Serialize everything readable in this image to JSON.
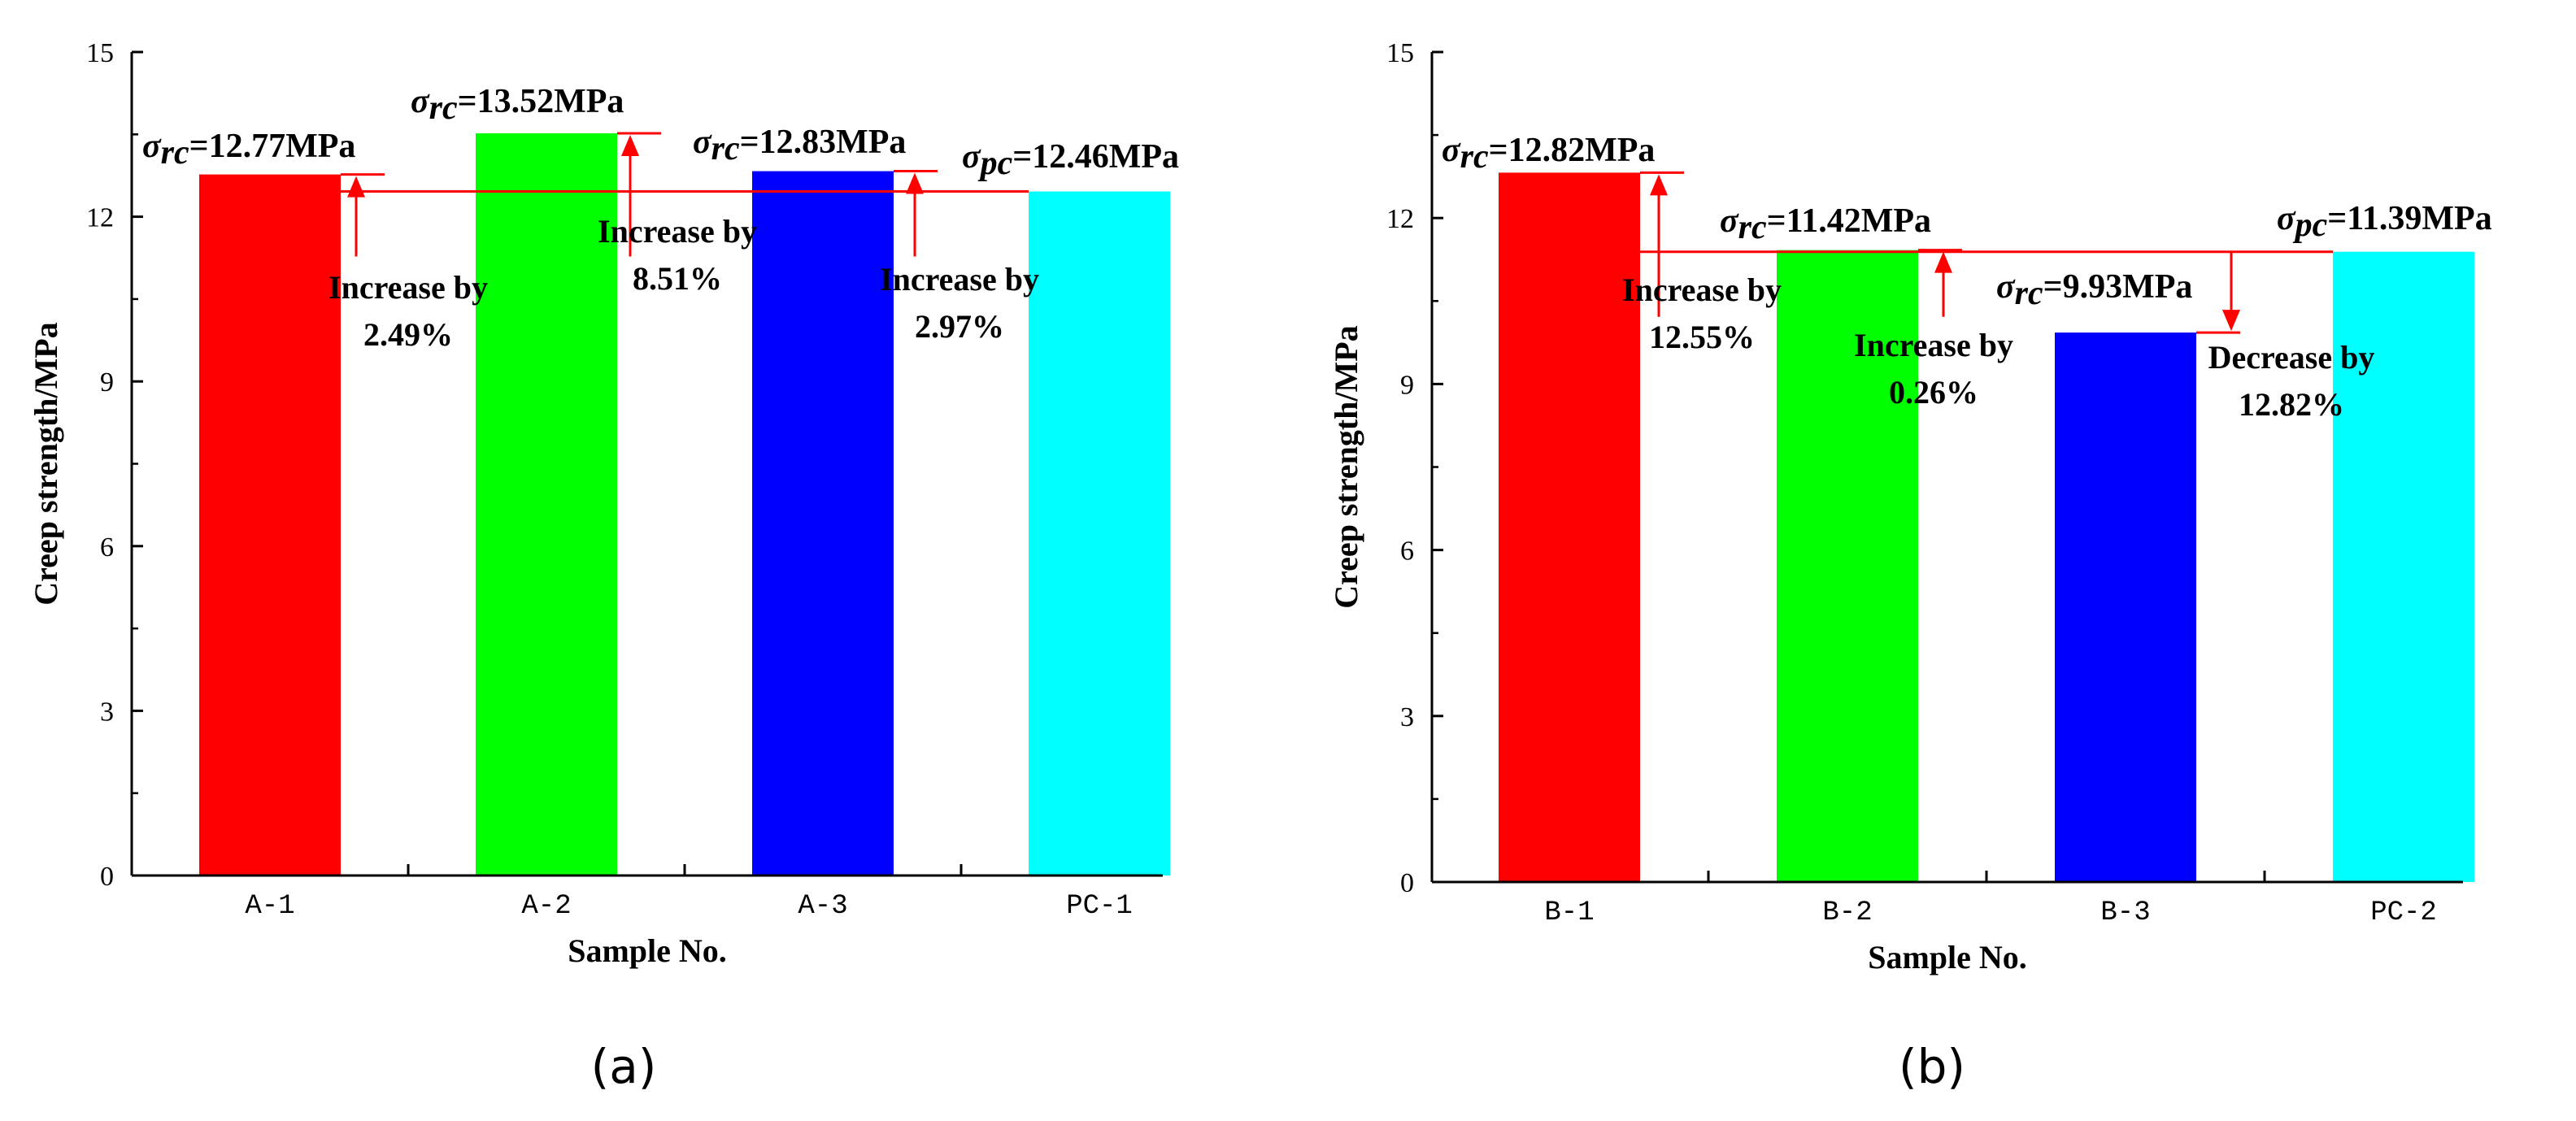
{
  "chart_data": [
    {
      "panel": "(a)",
      "type": "bar",
      "categories": [
        "A-1",
        "A-2",
        "A-3",
        "PC-1"
      ],
      "values": [
        12.77,
        13.52,
        12.83,
        12.46
      ],
      "colors": [
        "#ff0000",
        "#00ff00",
        "#0000ff",
        "#00ffff"
      ],
      "xlabel": "Sample No.",
      "ylabel": "Creep strength/MPa",
      "ylim": [
        0,
        15
      ],
      "yticks": [
        "0",
        "3",
        "6",
        "9",
        "12",
        "15"
      ],
      "value_labels": [
        {
          "symbol": "σ",
          "sub": "rc",
          "text": "=12.77MPa"
        },
        {
          "symbol": "σ",
          "sub": "rc",
          "text": "=13.52MPa"
        },
        {
          "symbol": "σ",
          "sub": "rc",
          "text": "=12.83MPa"
        },
        {
          "symbol": "σ",
          "sub": "pc",
          "text": "=12.46MPa"
        }
      ],
      "reference_value": 12.46,
      "annotations": [
        {
          "line1": "Increase by",
          "line2": "2.49%"
        },
        {
          "line1": "Increase by",
          "line2": "8.51%"
        },
        {
          "line1": "Increase by",
          "line2": "2.97%"
        }
      ]
    },
    {
      "panel": "(b)",
      "type": "bar",
      "categories": [
        "B-1",
        "B-2",
        "B-3",
        "PC-2"
      ],
      "values": [
        12.82,
        11.42,
        9.93,
        11.39
      ],
      "colors": [
        "#ff0000",
        "#00ff00",
        "#0000ff",
        "#00ffff"
      ],
      "xlabel": "Sample No.",
      "ylabel": "Creep strength/MPa",
      "ylim": [
        0,
        15
      ],
      "yticks": [
        "0",
        "3",
        "6",
        "9",
        "12",
        "15"
      ],
      "value_labels": [
        {
          "symbol": "σ",
          "sub": "rc",
          "text": "=12.82MPa"
        },
        {
          "symbol": "σ",
          "sub": "rc",
          "text": "=11.42MPa"
        },
        {
          "symbol": "σ",
          "sub": "rc",
          "text": "=9.93MPa"
        },
        {
          "symbol": "σ",
          "sub": "pc",
          "text": "=11.39MPa"
        }
      ],
      "reference_value": 11.39,
      "annotations": [
        {
          "line1": "Increase by",
          "line2": "12.55%"
        },
        {
          "line1": "Increase by",
          "line2": "0.26%"
        },
        {
          "line1": "Decrease by",
          "line2": "12.82%"
        }
      ]
    }
  ],
  "annotation_color": "#ff0000"
}
